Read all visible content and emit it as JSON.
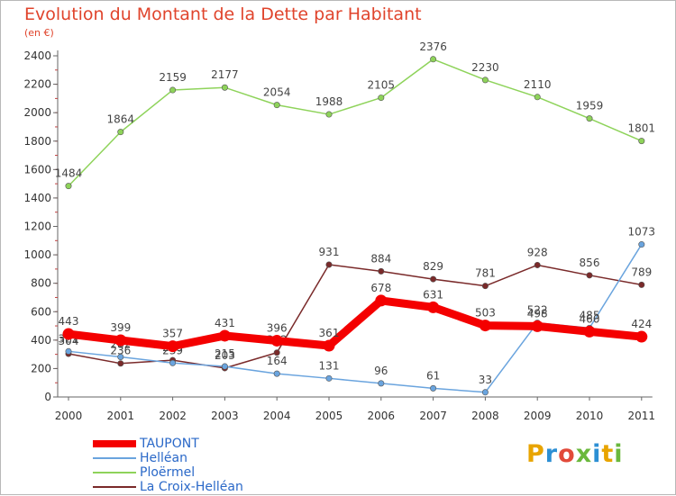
{
  "chart_data": {
    "type": "line",
    "title": "Evolution du Montant de la Dette par Habitant",
    "subtitle": "(en €)",
    "categories": [
      "2000",
      "2001",
      "2002",
      "2003",
      "2004",
      "2005",
      "2006",
      "2007",
      "2008",
      "2009",
      "2010",
      "2011"
    ],
    "ylim": [
      0,
      2400
    ],
    "yticks": [
      0,
      200,
      400,
      600,
      800,
      1000,
      1200,
      1400,
      1600,
      1800,
      2000,
      2200,
      2400
    ],
    "grid": false,
    "legend_position": "bottom-left",
    "series": [
      {
        "name": "Ploërmel",
        "color": "#8ed35a",
        "values": [
          1484,
          1864,
          2159,
          2177,
          2054,
          1988,
          2105,
          2376,
          2230,
          2110,
          1959,
          1801
        ]
      },
      {
        "name": "La Croix-Helléan",
        "color": "#7a2a2a",
        "values": [
          304,
          236,
          259,
          203,
          312,
          931,
          884,
          829,
          781,
          928,
          856,
          789
        ]
      },
      {
        "name": "Helléan",
        "color": "#6aa4de",
        "values": [
          321,
          282,
          239,
          215,
          164,
          131,
          96,
          61,
          33,
          522,
          485,
          1073
        ]
      },
      {
        "name": "TAUPONT",
        "color": "#f40000",
        "values": [
          443,
          399,
          357,
          431,
          396,
          361,
          678,
          631,
          503,
          498,
          460,
          424
        ]
      }
    ]
  },
  "legend": [
    {
      "name": "TAUPONT",
      "color": "#f40000"
    },
    {
      "name": "Helléan",
      "color": "#6aa4de"
    },
    {
      "name": "Ploërmel",
      "color": "#8ed35a"
    },
    {
      "name": "La Croix-Helléan",
      "color": "#7a2a2a"
    }
  ],
  "logo": {
    "text": "Proxiti"
  }
}
